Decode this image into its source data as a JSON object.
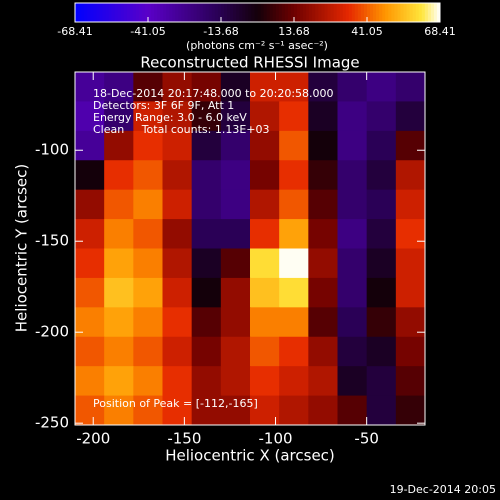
{
  "chart_data": {
    "type": "heatmap",
    "title": "Reconstructed RHESSI Image",
    "xlabel": "Heliocentric X (arcsec)",
    "ylabel": "Heliocentric Y (arcsec)",
    "xlim": [
      -210,
      -18
    ],
    "ylim": [
      -251,
      -57
    ],
    "xticks": [
      -200,
      -150,
      -100,
      -50
    ],
    "yticks": [
      -100,
      -150,
      -200,
      -250
    ],
    "colorbar": {
      "label": "(photons cm⁻² s⁻¹ asec⁻²)",
      "clim": [
        -68.41,
        68.41
      ],
      "ticks": [
        -68.41,
        -41.05,
        -13.68,
        13.68,
        41.05,
        68.41
      ]
    },
    "annotations": [
      "18-Dec-2014 20:17:48.000 to 20:20:58.000",
      "Detectors: 3F 6F 9F, Att 1",
      "Energy Range: 3.0 - 6.0 keV",
      "Clean     Total counts: 1.13E+03"
    ],
    "peak_label": "Position of Peak = [-112,-165]",
    "timestamp": "19-Dec-2014 20:05",
    "z": [
      [
        -30,
        -25,
        10,
        20,
        15,
        -5,
        30,
        30,
        -10,
        -20,
        -25,
        -20
      ],
      [
        -35,
        -20,
        30,
        25,
        5,
        -10,
        25,
        35,
        -5,
        -25,
        -20,
        -10
      ],
      [
        -30,
        20,
        35,
        30,
        -10,
        -20,
        20,
        40,
        0,
        -25,
        -15,
        10
      ],
      [
        0,
        35,
        40,
        25,
        -20,
        -25,
        15,
        35,
        5,
        -20,
        -10,
        25
      ],
      [
        20,
        40,
        45,
        30,
        -20,
        -25,
        25,
        40,
        10,
        -20,
        -15,
        30
      ],
      [
        30,
        45,
        40,
        20,
        -15,
        -15,
        35,
        50,
        15,
        -25,
        -10,
        35
      ],
      [
        35,
        50,
        45,
        25,
        -5,
        10,
        60,
        68,
        20,
        -20,
        -5,
        30
      ],
      [
        40,
        55,
        50,
        30,
        0,
        20,
        55,
        60,
        15,
        -20,
        0,
        30
      ],
      [
        45,
        50,
        45,
        35,
        10,
        20,
        45,
        45,
        10,
        -15,
        5,
        20
      ],
      [
        40,
        45,
        40,
        30,
        15,
        25,
        40,
        35,
        20,
        -10,
        -5,
        15
      ],
      [
        45,
        50,
        45,
        35,
        20,
        25,
        35,
        30,
        25,
        -5,
        -10,
        10
      ],
      [
        40,
        45,
        40,
        35,
        20,
        20,
        30,
        25,
        20,
        10,
        -10,
        5
      ]
    ]
  }
}
